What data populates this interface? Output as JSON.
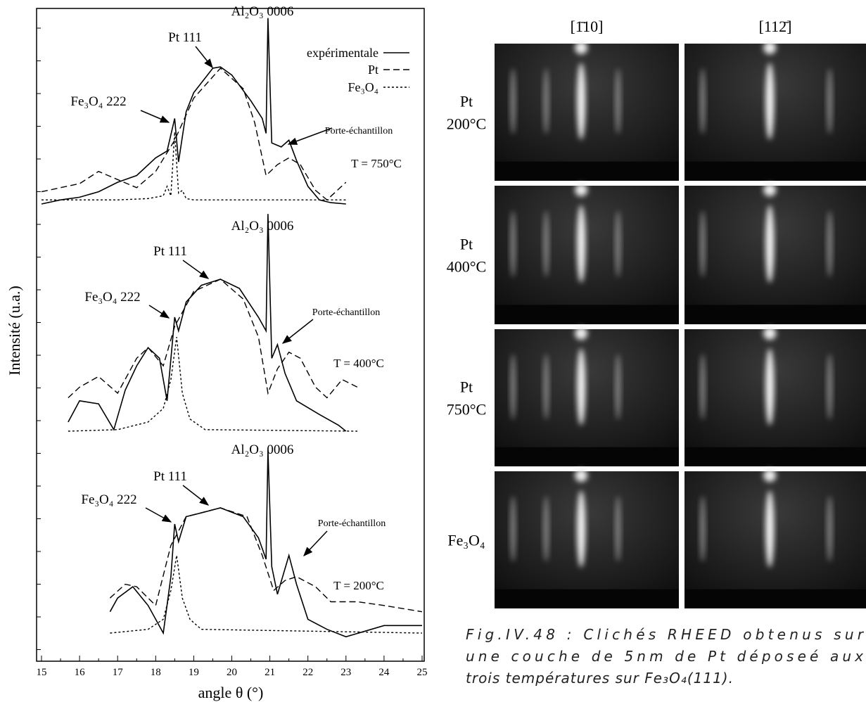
{
  "chart_data": {
    "type": "line",
    "y_label": "Intensité (u.a.)",
    "x_label": "angle θ (°)",
    "xlim": [
      15,
      25
    ],
    "xticks": [
      15,
      16,
      17,
      18,
      19,
      20,
      21,
      22,
      23,
      24,
      25
    ],
    "legend": [
      {
        "name": "expérimentale",
        "color": "#000000",
        "dash": "none"
      },
      {
        "name": "Pt",
        "color": "#000000",
        "dash": "9 5"
      },
      {
        "name": "Fe₃O₄",
        "color": "#000000",
        "dash": "3 3"
      }
    ],
    "panels": [
      {
        "label": "T = 750°C",
        "substrate": "Al₂O₃ 0006",
        "pt": "Pt 111",
        "fe": "Fe₃O₄ 222",
        "holder": "Porte-échantillon",
        "curves": [
          {
            "x": [
              15,
              15.5,
              16,
              16.5,
              17,
              17.5,
              18,
              18.3,
              18.5,
              18.6,
              18.8,
              19,
              19.5,
              19.7,
              20,
              20.5,
              20.8,
              20.9,
              20.95,
              21.05,
              21.3,
              21.5,
              21.7,
              22,
              22.3,
              22.6,
              23
            ],
            "values": [
              0,
              3,
              5,
              9,
              16,
              21,
              34,
              39,
              63,
              31,
              68,
              82,
              100,
              101,
              95,
              76,
              63,
              52,
              137,
              45,
              42,
              47,
              32,
              13,
              3,
              1,
              0
            ]
          },
          {
            "x": [
              15,
              15.5,
              16,
              16.5,
              17,
              17.5,
              18,
              18.5,
              19,
              19.7,
              20.3,
              20.6,
              20.9,
              21.2,
              21.5,
              21.8,
              22.2,
              22.5,
              23
            ],
            "values": [
              9,
              12,
              15,
              24,
              18,
              12,
              24,
              47,
              78,
              100,
              85,
              60,
              21,
              29,
              34,
              29,
              10,
              3,
              16
            ]
          },
          {
            "x": [
              15,
              17,
              17.8,
              18.2,
              18.3,
              18.4,
              18.5,
              18.6,
              18.7,
              18.8,
              19,
              20,
              23
            ],
            "values": [
              3,
              3,
              4,
              6,
              13,
              6,
              53,
              8,
              10,
              4,
              3,
              3,
              3
            ]
          }
        ]
      },
      {
        "label": "T = 400°C",
        "substrate": "Al₂O₃ 0006",
        "pt": "Pt 111",
        "fe": "Fe₃O₄ 222",
        "holder": "Porte-échantillon",
        "curves": [
          {
            "x": [
              15.7,
              16,
              16.5,
              16.9,
              17.2,
              17.5,
              17.8,
              18.1,
              18.3,
              18.5,
              18.6,
              18.8,
              19.2,
              19.7,
              20.2,
              20.7,
              20.9,
              20.95,
              21.05,
              21.2,
              21.4,
              21.7,
              22.3,
              22.8,
              23
            ],
            "values": [
              6,
              20,
              18,
              1,
              27,
              43,
              55,
              48,
              20,
              75,
              66,
              85,
              96,
              100,
              94,
              75,
              66,
              143,
              48,
              57,
              38,
              20,
              11,
              4,
              0
            ]
          },
          {
            "x": [
              15.7,
              16,
              16.5,
              17,
              17.5,
              17.8,
              18.2,
              18.5,
              19,
              19.7,
              20.3,
              20.7,
              20.95,
              21.2,
              21.5,
              21.8,
              22.2,
              22.5,
              22.9,
              23.3
            ],
            "values": [
              22,
              29,
              36,
              25,
              48,
              55,
              43,
              69,
              92,
              100,
              87,
              62,
              25,
              41,
              52,
              48,
              29,
              22,
              34,
              29
            ]
          },
          {
            "x": [
              15.7,
              17,
              17.8,
              18.2,
              18.4,
              18.55,
              18.7,
              18.9,
              19.3,
              23.3
            ],
            "values": [
              0,
              1,
              6,
              15,
              34,
              62,
              25,
              8,
              1,
              0
            ]
          }
        ]
      },
      {
        "label": "T = 200°C",
        "substrate": "Al₂O₃ 0006",
        "pt": "Pt 111",
        "fe": "Fe₃O₄ 222",
        "holder": "Porte-échantillon",
        "curves": [
          {
            "x": [
              16.8,
              17,
              17.4,
              17.8,
              18,
              18.2,
              18.4,
              18.5,
              18.6,
              18.8,
              19.2,
              19.7,
              20.3,
              20.7,
              20.9,
              20.95,
              21.05,
              21.2,
              21.5,
              21.7,
              22,
              22.5,
              23,
              24,
              25
            ],
            "values": [
              17,
              28,
              37,
              22,
              11,
              0,
              45,
              87,
              73,
              93,
              96,
              100,
              93,
              76,
              59,
              146,
              53,
              31,
              62,
              39,
              11,
              3,
              -3,
              6,
              6
            ]
          },
          {
            "x": [
              16.8,
              17.2,
              17.5,
              18,
              18.4,
              18.8,
              19.7,
              20.4,
              20.8,
              21.1,
              21.4,
              21.7,
              22.2,
              22.6,
              23.3,
              24,
              25
            ],
            "values": [
              28,
              39,
              37,
              22,
              70,
              93,
              100,
              93,
              62,
              34,
              42,
              45,
              37,
              25,
              25,
              22,
              17
            ]
          },
          {
            "x": [
              16.8,
              17.8,
              18.2,
              18.4,
              18.55,
              18.7,
              18.9,
              19.2,
              25
            ],
            "values": [
              0,
              3,
              11,
              34,
              62,
              28,
              11,
              3,
              0
            ]
          }
        ]
      }
    ]
  },
  "rheed": {
    "columns": [
      "[1̄10]",
      "[112̄]"
    ],
    "rows": [
      [
        "Pt",
        "200°C"
      ],
      [
        "Pt",
        "400°C"
      ],
      [
        "Pt",
        "750°C"
      ],
      [
        "Fe₃O₄"
      ]
    ]
  },
  "caption": [
    "Fig.IV.48 : Clichés RHEED obtenus sur",
    "une couche de 5nm de Pt déposeé aux",
    "trois températures sur Fe₃O₄(111)."
  ]
}
